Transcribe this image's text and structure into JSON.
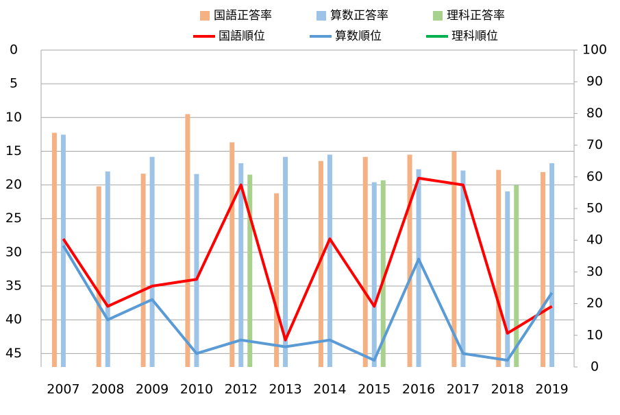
{
  "chart_data": {
    "type": "bar-line",
    "categories": [
      "2007",
      "2008",
      "2009",
      "2010",
      "2012",
      "2013",
      "2014",
      "2015",
      "2016",
      "2017",
      "2018",
      "2019"
    ],
    "ylim": [
      0,
      47
    ],
    "y_reversed": true,
    "yticks": [
      0,
      5,
      10,
      15,
      20,
      25,
      30,
      35,
      40,
      45
    ],
    "y2lim": [
      0,
      100
    ],
    "y2ticks": [
      0,
      10,
      20,
      30,
      40,
      50,
      60,
      70,
      80,
      90,
      100
    ],
    "grid": true,
    "series": [
      {
        "name": "国語正答率",
        "kind": "bar",
        "axis": "y2",
        "color": "#f4b183",
        "values": [
          73.9,
          57,
          61,
          79.8,
          70.9,
          54.8,
          65,
          66.3,
          67,
          68,
          62.2,
          61.5
        ]
      },
      {
        "name": "算数正答率",
        "kind": "bar",
        "axis": "y2",
        "color": "#9dc3e6",
        "values": [
          73.3,
          61.7,
          66.3,
          60.9,
          64.3,
          66.3,
          67,
          58.3,
          62.4,
          62,
          55.4,
          64.3
        ]
      },
      {
        "name": "理科正答率",
        "kind": "bar",
        "axis": "y2",
        "color": "#a9d18e",
        "values": [
          null,
          null,
          null,
          null,
          60.7,
          null,
          null,
          58.9,
          null,
          null,
          57.4,
          null
        ]
      },
      {
        "name": "国語順位",
        "kind": "line",
        "color": "#ff0000",
        "values": [
          28,
          38,
          35,
          34,
          20,
          43,
          28,
          38,
          19,
          20,
          42,
          38
        ]
      },
      {
        "name": "算数順位",
        "kind": "line",
        "color": "#5b9bd5",
        "values": [
          29,
          40,
          37,
          45,
          43,
          44,
          43,
          46,
          31,
          45,
          46,
          36
        ]
      },
      {
        "name": "理科順位",
        "kind": "line",
        "color": "#00b050",
        "values": [
          null,
          null,
          null,
          null,
          null,
          null,
          null,
          null,
          null,
          null,
          null,
          null
        ]
      }
    ]
  }
}
